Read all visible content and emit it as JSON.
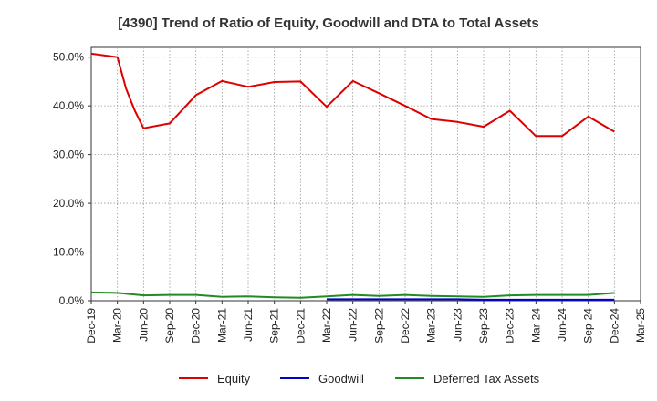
{
  "chart_data": {
    "type": "line",
    "title": "[4390]  Trend of Ratio of Equity, Goodwill and DTA to Total Assets",
    "xlabel": "",
    "ylabel": "",
    "ylim": [
      0,
      52
    ],
    "y_ticks": [
      "0.0%",
      "10.0%",
      "20.0%",
      "30.0%",
      "40.0%",
      "50.0%"
    ],
    "y_tick_values": [
      0,
      10,
      20,
      30,
      40,
      50
    ],
    "x_tick_labels": [
      "Dec-19",
      "Mar-20",
      "Jun-20",
      "Sep-20",
      "Dec-20",
      "Mar-21",
      "Jun-21",
      "Sep-21",
      "Dec-21",
      "Mar-22",
      "Jun-22",
      "Sep-22",
      "Dec-22",
      "Mar-23",
      "Jun-23",
      "Sep-23",
      "Dec-23",
      "Mar-24",
      "Jun-24",
      "Sep-24",
      "Dec-24",
      "Mar-25"
    ],
    "grid": true,
    "legend_position": "bottom",
    "series": [
      {
        "name": "Equity",
        "color": "#dd0000",
        "points": [
          [
            "Dec-19",
            50.7
          ],
          [
            "Mar-20",
            50.0
          ],
          [
            "Apr-20",
            43.5
          ],
          [
            "May-20",
            39.0
          ],
          [
            "Jun-20",
            35.4
          ],
          [
            "Sep-20",
            36.4
          ],
          [
            "Dec-20",
            42.2
          ],
          [
            "Mar-21",
            45.1
          ],
          [
            "Jun-21",
            43.9
          ],
          [
            "Sep-21",
            44.9
          ],
          [
            "Dec-21",
            45.0
          ],
          [
            "Mar-22",
            39.8
          ],
          [
            "Jun-22",
            45.1
          ],
          [
            "Sep-22",
            42.6
          ],
          [
            "Dec-22",
            40.0
          ],
          [
            "Mar-23",
            37.3
          ],
          [
            "Jun-23",
            36.7
          ],
          [
            "Sep-23",
            35.7
          ],
          [
            "Dec-23",
            39.0
          ],
          [
            "Mar-24",
            33.8
          ],
          [
            "Jun-24",
            33.8
          ],
          [
            "Sep-24",
            37.8
          ],
          [
            "Dec-24",
            34.7
          ]
        ]
      },
      {
        "name": "Goodwill",
        "color": "#0000cc",
        "points": [
          [
            "Mar-22",
            0.3
          ],
          [
            "Jun-22",
            0.3
          ],
          [
            "Sep-22",
            0.3
          ],
          [
            "Dec-22",
            0.3
          ],
          [
            "Mar-23",
            0.3
          ],
          [
            "Jun-23",
            0.3
          ],
          [
            "Sep-23",
            0.2
          ],
          [
            "Dec-23",
            0.2
          ],
          [
            "Mar-24",
            0.2
          ],
          [
            "Jun-24",
            0.2
          ],
          [
            "Sep-24",
            0.2
          ],
          [
            "Dec-24",
            0.2
          ]
        ]
      },
      {
        "name": "Deferred Tax Assets",
        "color": "#228B22",
        "points": [
          [
            "Dec-19",
            1.7
          ],
          [
            "Mar-20",
            1.6
          ],
          [
            "Jun-20",
            1.1
          ],
          [
            "Sep-20",
            1.2
          ],
          [
            "Dec-20",
            1.2
          ],
          [
            "Mar-21",
            0.8
          ],
          [
            "Jun-21",
            0.9
          ],
          [
            "Sep-21",
            0.7
          ],
          [
            "Dec-21",
            0.6
          ],
          [
            "Mar-22",
            0.9
          ],
          [
            "Jun-22",
            1.2
          ],
          [
            "Sep-22",
            1.0
          ],
          [
            "Dec-22",
            1.2
          ],
          [
            "Mar-23",
            1.0
          ],
          [
            "Jun-23",
            0.9
          ],
          [
            "Sep-23",
            0.8
          ],
          [
            "Dec-23",
            1.1
          ],
          [
            "Mar-24",
            1.2
          ],
          [
            "Jun-24",
            1.2
          ],
          [
            "Sep-24",
            1.2
          ],
          [
            "Dec-24",
            1.6
          ]
        ]
      }
    ]
  }
}
